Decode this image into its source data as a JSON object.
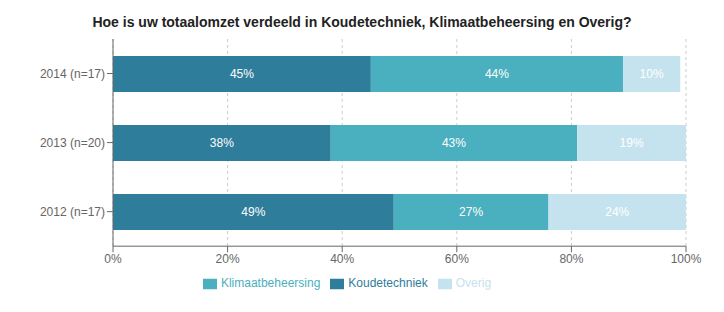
{
  "chart_data": {
    "type": "bar",
    "title": "Hoe is uw totaalomzet verdeeld in Koudetechniek, Klimaatbeheersing en Overig?",
    "orientation": "horizontal",
    "stacked": true,
    "categories": [
      "2014 (n=17)",
      "2013 (n=20)",
      "2012 (n=17)"
    ],
    "series": [
      {
        "name": "Koudetechniek",
        "color": "#2E7D9A",
        "values": [
          45,
          38,
          49
        ],
        "value_labels": [
          "45%",
          "38%",
          "49%"
        ]
      },
      {
        "name": "Klimaatbeheersing",
        "color": "#4AAFBE",
        "values": [
          44,
          43,
          27
        ],
        "value_labels": [
          "44%",
          "43%",
          "27%"
        ]
      },
      {
        "name": "Overig",
        "color": "#C5E3EE",
        "values": [
          10,
          19,
          24
        ],
        "value_labels": [
          "10%",
          "19%",
          "24%"
        ]
      }
    ],
    "xlim": [
      0,
      100
    ],
    "xticks": [
      {
        "value": 0,
        "label": "0%"
      },
      {
        "value": 20,
        "label": "20%"
      },
      {
        "value": 40,
        "label": "40%"
      },
      {
        "value": 60,
        "label": "60%"
      },
      {
        "value": 80,
        "label": "80%"
      },
      {
        "value": 100,
        "label": "100%"
      }
    ],
    "grid": true,
    "data_labels": true,
    "legend": "bottom"
  }
}
